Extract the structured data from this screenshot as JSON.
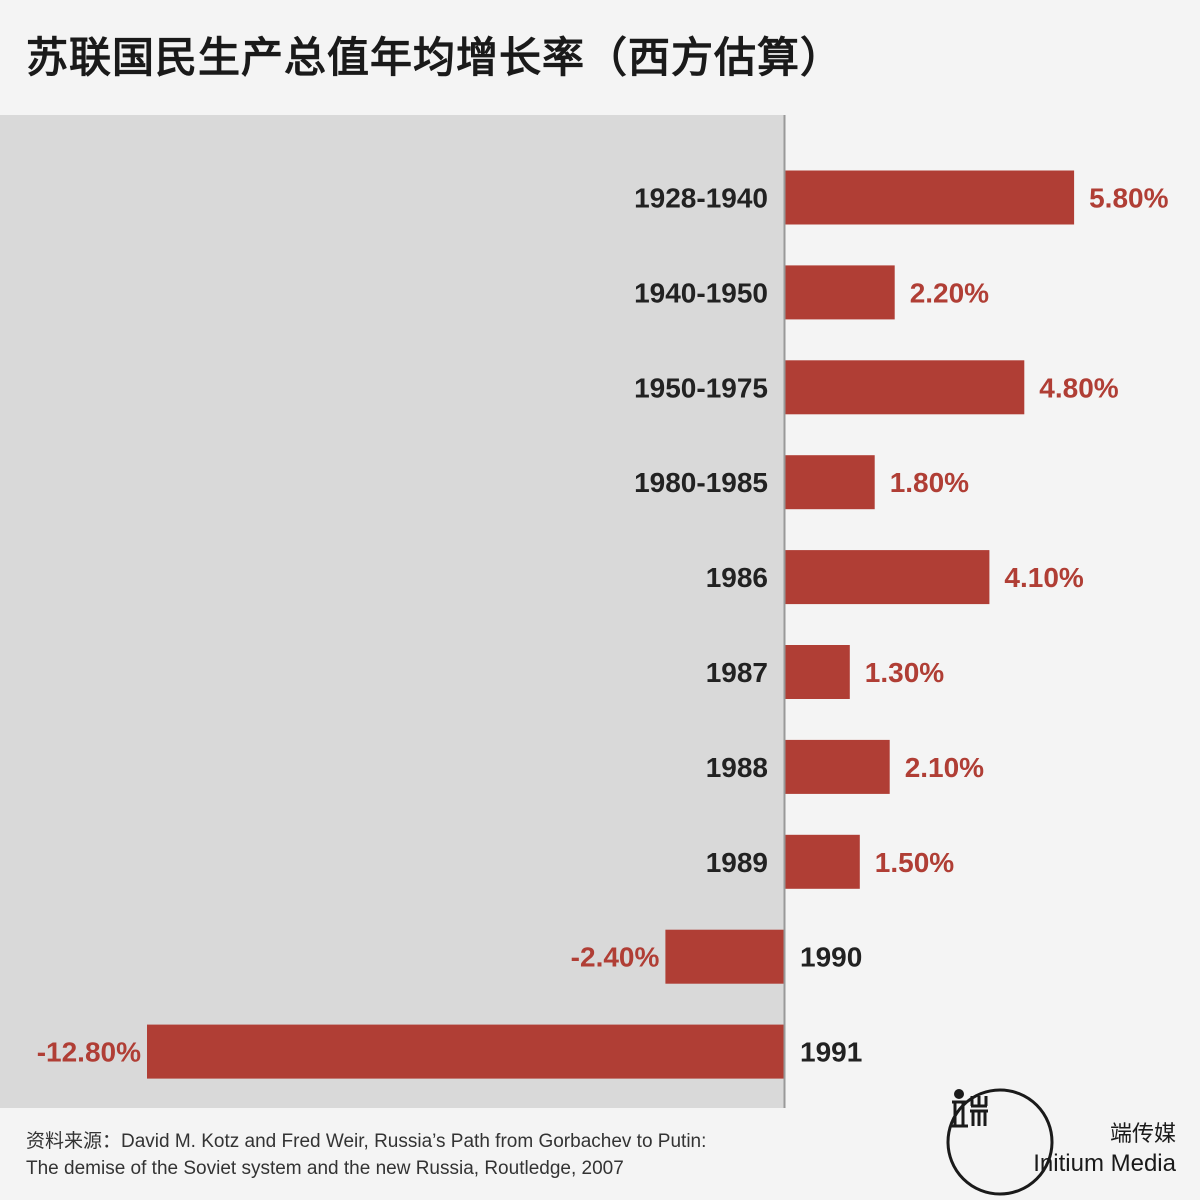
{
  "title": "苏联国民生产总值年均增长率（西方估算）",
  "source": {
    "line1": "资料来源：David M. Kotz and Fred Weir, Russia’s Path from Gorbachev to Putin:",
    "line2": "The demise of the Soviet system and the new Russia, Routledge, 2007"
  },
  "brand": {
    "cn": "端传媒",
    "en": "Initium Media"
  },
  "colors": {
    "bar": "#b03e35",
    "negative_panel": "#d9d9d9",
    "background": "#f4f4f4",
    "axis": "#999999"
  },
  "chart_data": {
    "type": "bar",
    "orientation": "horizontal",
    "title": "苏联国民生产总值年均增长率（西方估算）",
    "unit": "%",
    "categories": [
      "1928-1940",
      "1940-1950",
      "1950-1975",
      "1980-1985",
      "1986",
      "1987",
      "1988",
      "1989",
      "1990",
      "1991"
    ],
    "values": [
      5.8,
      2.2,
      4.8,
      1.8,
      4.1,
      1.3,
      2.1,
      1.5,
      -2.4,
      -12.8
    ],
    "value_labels": [
      "5.80%",
      "2.20%",
      "4.80%",
      "1.80%",
      "4.10%",
      "1.30%",
      "2.10%",
      "1.50%",
      "-2.40%",
      "-12.80%"
    ],
    "xlim": [
      -12.8,
      5.8
    ],
    "grid": false,
    "legend": "none"
  }
}
